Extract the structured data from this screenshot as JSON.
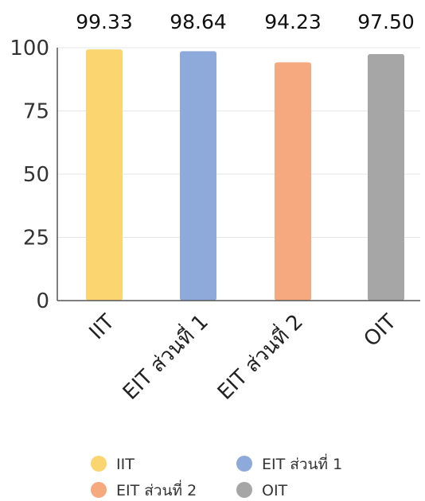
{
  "chart_data": {
    "type": "bar",
    "categories": [
      "IIT",
      "EIT ส่วนที่ 1",
      "EIT ส่วนที่ 2",
      "OIT"
    ],
    "series": [
      {
        "values": [
          99.33,
          98.64,
          94.23,
          97.5
        ]
      }
    ],
    "data_labels": [
      "99.33",
      "98.64",
      "94.23",
      "97.50"
    ],
    "bar_colors": [
      "#FAD570",
      "#8DAADB",
      "#F6A97F",
      "#A6A6A6"
    ],
    "ylim": [
      0,
      100
    ],
    "yticks": [
      0,
      25,
      50,
      75,
      100
    ],
    "ytick_labels": [
      "0",
      "25",
      "50",
      "75",
      "100"
    ],
    "grid": true,
    "legend": {
      "placement": "bottom",
      "entries": [
        "IIT",
        "EIT ส่วนที่ 1",
        "EIT ส่วนที่ 2",
        "OIT"
      ]
    },
    "title": "",
    "xlabel": "",
    "ylabel": ""
  }
}
